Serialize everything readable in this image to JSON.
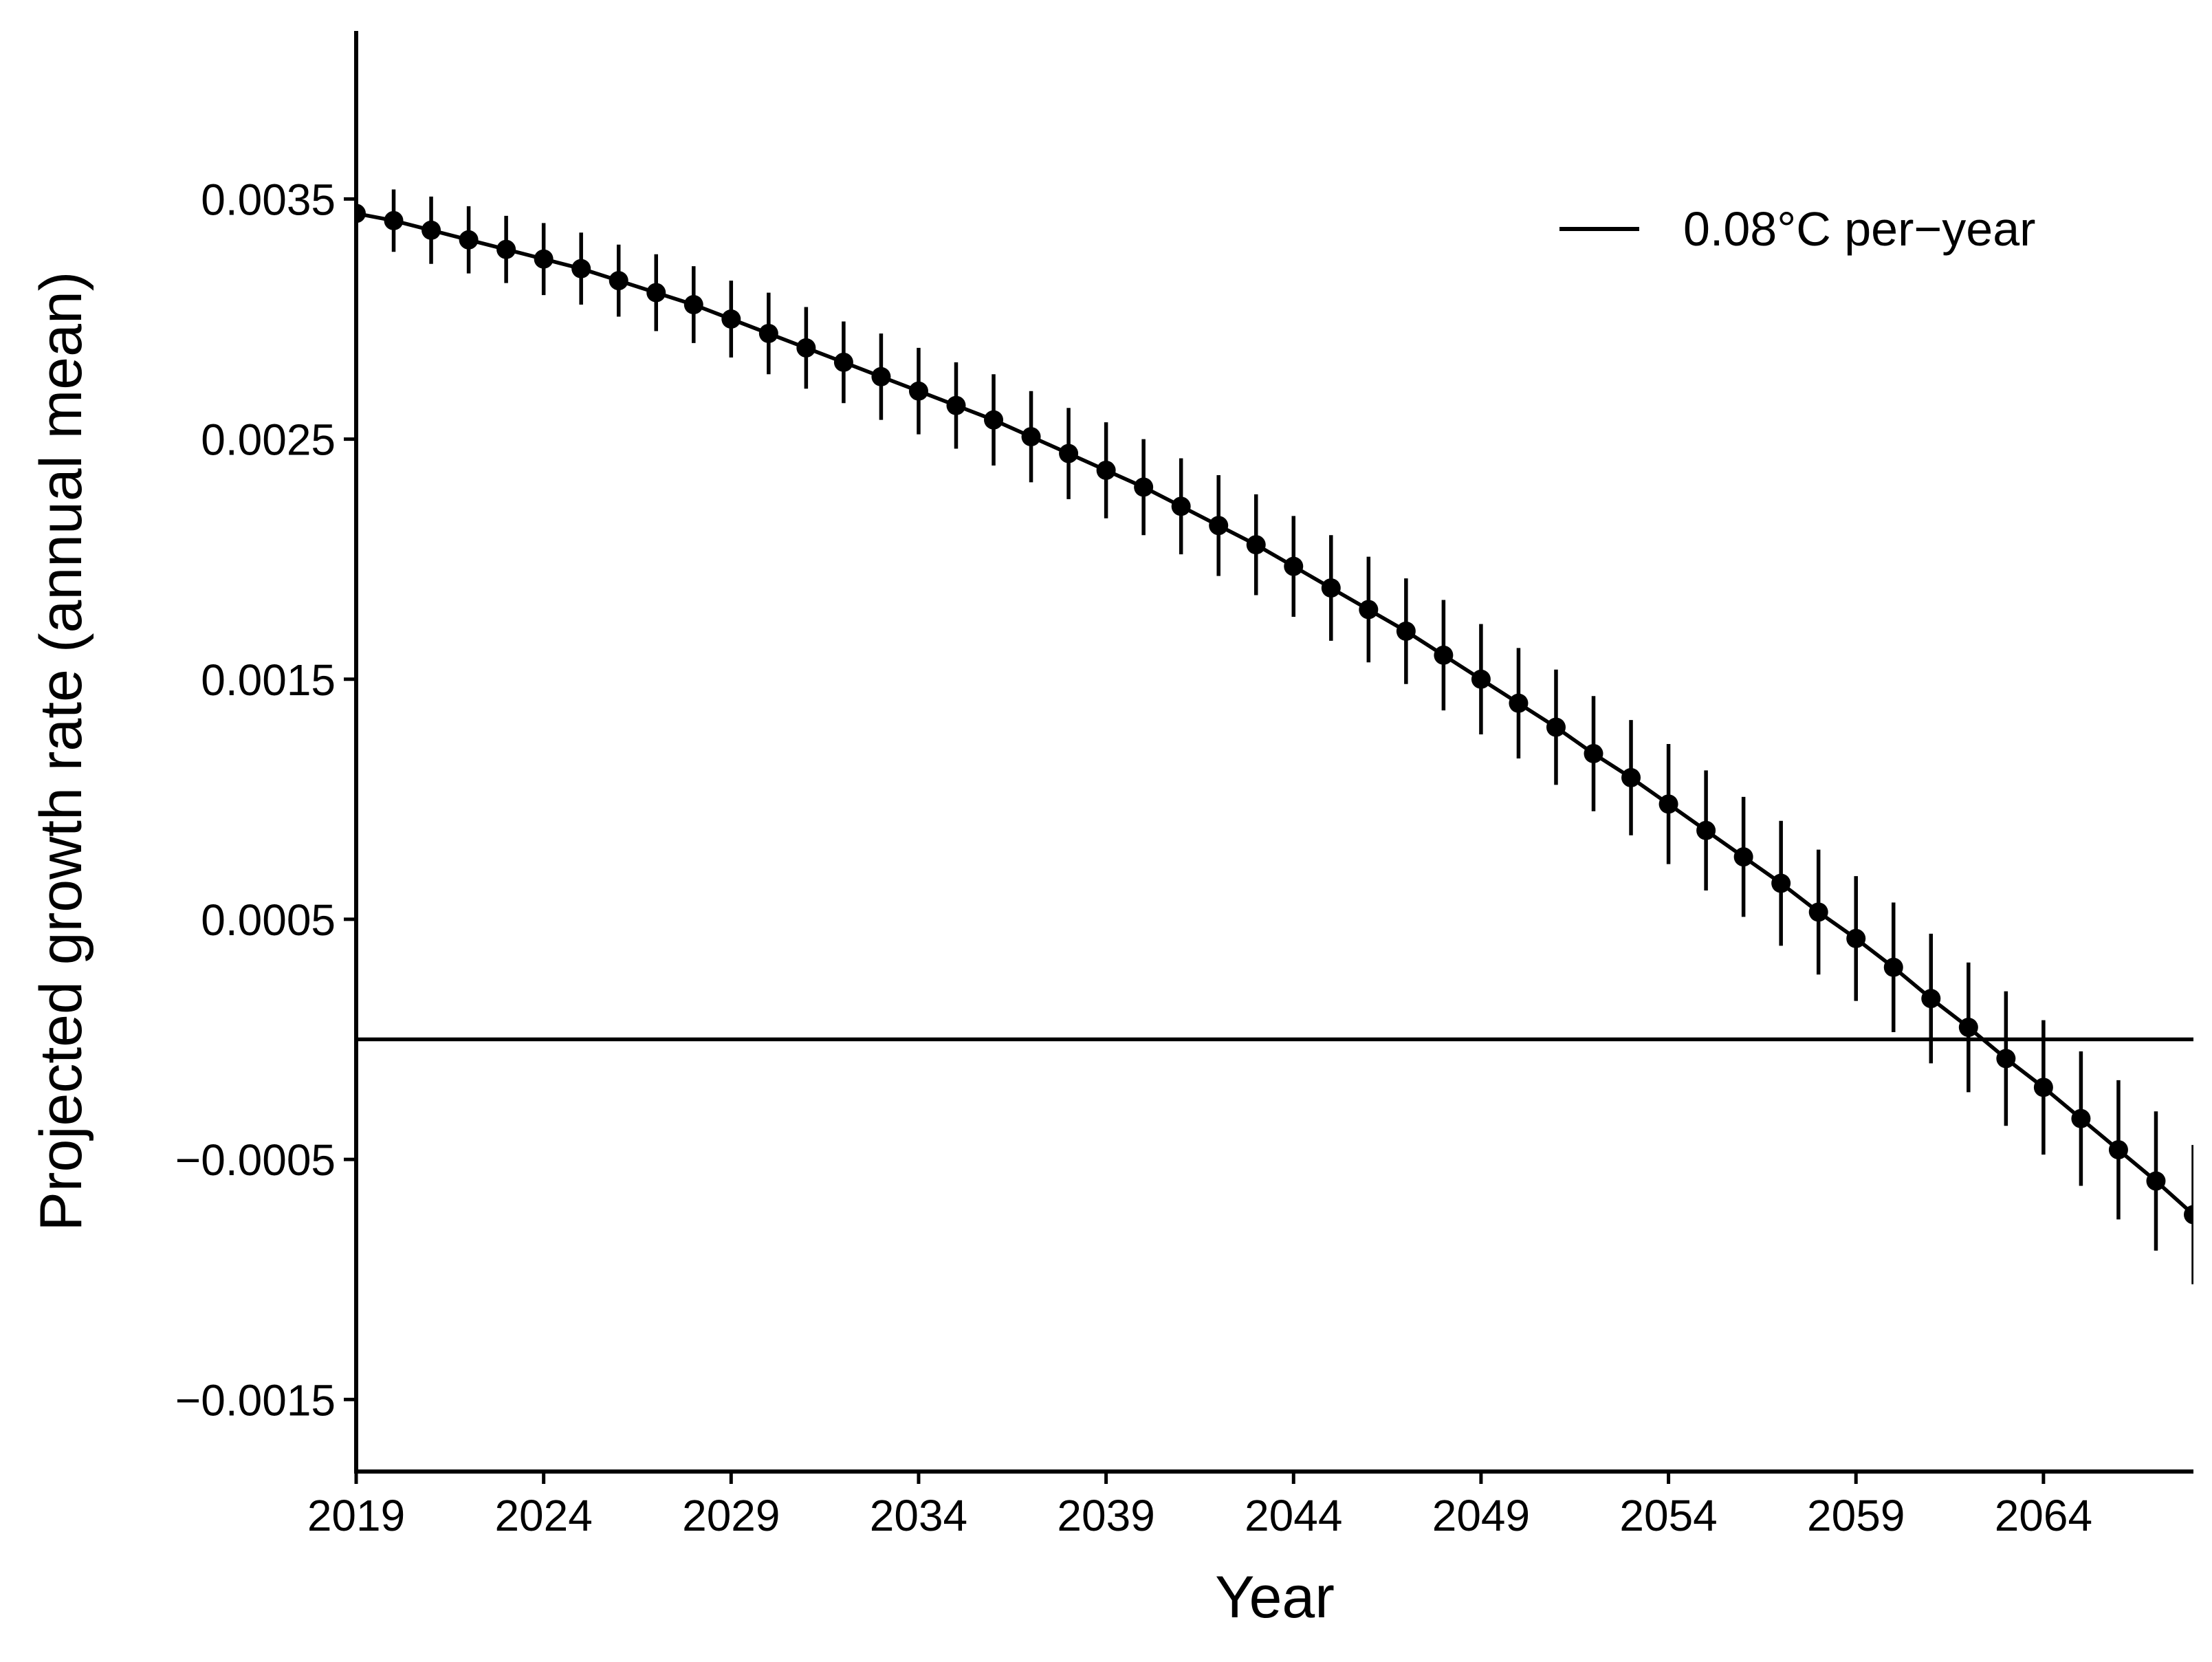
{
  "chart_data": {
    "type": "line",
    "xlabel": "Year",
    "ylabel": "Projected growth rate (annual mean)",
    "xlim": [
      2019,
      2068
    ],
    "ylim": [
      -0.0018,
      0.0042
    ],
    "x_ticks": [
      2019,
      2024,
      2029,
      2034,
      2039,
      2044,
      2049,
      2054,
      2059,
      2064
    ],
    "y_ticks": [
      0.0035,
      0.0025,
      0.0015,
      0.0005,
      -0.0005,
      -0.0015
    ],
    "x_tick_labels": [
      "2019",
      "2024",
      "2029",
      "2034",
      "2039",
      "2044",
      "2049",
      "2054",
      "2059",
      "2064"
    ],
    "y_tick_labels": [
      "0.0035",
      "0.0025",
      "0.0015",
      "0.0005",
      "−0.0005",
      "−0.0015"
    ],
    "reference_line_y": 0,
    "grid": false,
    "legend_position": "top-right",
    "colors": {
      "series": "#000000",
      "axis": "#000000"
    },
    "series": [
      {
        "name": "0.08°C per−year",
        "x": [
          2019,
          2020,
          2021,
          2022,
          2023,
          2024,
          2025,
          2026,
          2027,
          2028,
          2029,
          2030,
          2031,
          2032,
          2033,
          2034,
          2035,
          2036,
          2037,
          2038,
          2039,
          2040,
          2041,
          2042,
          2043,
          2044,
          2045,
          2046,
          2047,
          2048,
          2049,
          2050,
          2051,
          2052,
          2053,
          2054,
          2055,
          2056,
          2057,
          2058,
          2059,
          2060,
          2061,
          2062,
          2063,
          2064,
          2065,
          2066,
          2067,
          2068
        ],
        "y": [
          0.00344,
          0.00341,
          0.00337,
          0.00333,
          0.00329,
          0.00325,
          0.00321,
          0.00316,
          0.00311,
          0.00306,
          0.003,
          0.00294,
          0.00288,
          0.00282,
          0.00276,
          0.0027,
          0.00264,
          0.00258,
          0.00251,
          0.00244,
          0.00237,
          0.0023,
          0.00222,
          0.00214,
          0.00206,
          0.00197,
          0.00188,
          0.00179,
          0.0017,
          0.0016,
          0.0015,
          0.0014,
          0.0013,
          0.00119,
          0.00109,
          0.00098,
          0.00087,
          0.00076,
          0.00065,
          0.00053,
          0.00042,
          0.0003,
          0.00017,
          5e-05,
          -8e-05,
          -0.0002,
          -0.00033,
          -0.00046,
          -0.00059,
          -0.00073
        ],
        "error": [
          0.00013,
          0.00013,
          0.00014,
          0.00014,
          0.00014,
          0.00015,
          0.00015,
          0.00015,
          0.00016,
          0.00016,
          0.00016,
          0.00017,
          0.00017,
          0.00017,
          0.00018,
          0.00018,
          0.00018,
          0.00019,
          0.00019,
          0.00019,
          0.0002,
          0.0002,
          0.0002,
          0.00021,
          0.00021,
          0.00021,
          0.00022,
          0.00022,
          0.00022,
          0.00023,
          0.00023,
          0.00023,
          0.00024,
          0.00024,
          0.00024,
          0.00025,
          0.00025,
          0.00025,
          0.00026,
          0.00026,
          0.00026,
          0.00027,
          0.00027,
          0.00027,
          0.00028,
          0.00028,
          0.00028,
          0.00029,
          0.00029,
          0.00029
        ]
      }
    ]
  }
}
